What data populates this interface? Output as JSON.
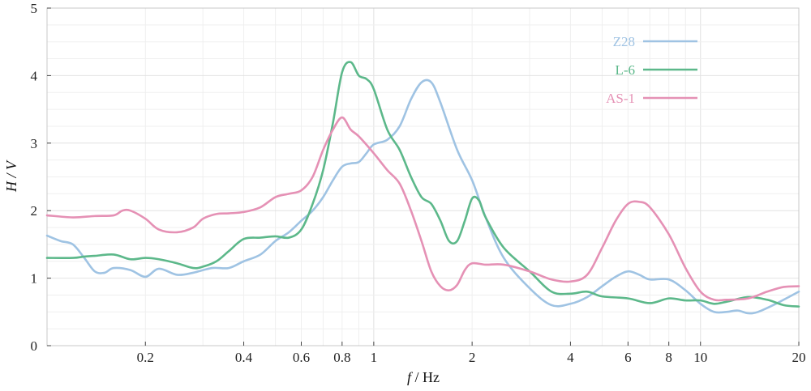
{
  "chart_data": {
    "type": "line",
    "title": "",
    "xlabel_italic": "f",
    "xlabel_rest": " / Hz",
    "ylabel": "H / V",
    "xscale": "log",
    "xlim": [
      0.1,
      20
    ],
    "ylim": [
      0,
      5
    ],
    "xticks": [
      0.2,
      0.4,
      0.6,
      0.8,
      1,
      2,
      4,
      6,
      8,
      10,
      20
    ],
    "xtick_labels": [
      "0.2",
      "0.4",
      "0.6",
      "0.8",
      "1",
      "2",
      "4",
      "6",
      "8",
      "10",
      "20"
    ],
    "yticks": [
      0,
      1,
      2,
      3,
      4,
      5
    ],
    "ytick_labels": [
      "0",
      "1",
      "2",
      "3",
      "4",
      "5"
    ],
    "grid": true,
    "legend_position": "top-right",
    "series": [
      {
        "name": "Z28",
        "color": "#9fc3e3",
        "points": [
          [
            0.1,
            1.63
          ],
          [
            0.11,
            1.55
          ],
          [
            0.12,
            1.5
          ],
          [
            0.13,
            1.3
          ],
          [
            0.14,
            1.1
          ],
          [
            0.15,
            1.08
          ],
          [
            0.16,
            1.15
          ],
          [
            0.18,
            1.12
          ],
          [
            0.2,
            1.02
          ],
          [
            0.22,
            1.14
          ],
          [
            0.25,
            1.05
          ],
          [
            0.28,
            1.08
          ],
          [
            0.32,
            1.15
          ],
          [
            0.36,
            1.15
          ],
          [
            0.4,
            1.25
          ],
          [
            0.45,
            1.35
          ],
          [
            0.5,
            1.55
          ],
          [
            0.55,
            1.68
          ],
          [
            0.6,
            1.85
          ],
          [
            0.65,
            2.0
          ],
          [
            0.7,
            2.2
          ],
          [
            0.75,
            2.45
          ],
          [
            0.8,
            2.65
          ],
          [
            0.85,
            2.7
          ],
          [
            0.9,
            2.72
          ],
          [
            0.95,
            2.85
          ],
          [
            1.0,
            2.98
          ],
          [
            1.1,
            3.05
          ],
          [
            1.2,
            3.25
          ],
          [
            1.3,
            3.65
          ],
          [
            1.4,
            3.9
          ],
          [
            1.5,
            3.9
          ],
          [
            1.6,
            3.6
          ],
          [
            1.8,
            2.9
          ],
          [
            2.0,
            2.45
          ],
          [
            2.2,
            1.9
          ],
          [
            2.5,
            1.3
          ],
          [
            3.0,
            0.85
          ],
          [
            3.5,
            0.6
          ],
          [
            4.0,
            0.62
          ],
          [
            4.5,
            0.72
          ],
          [
            5.0,
            0.88
          ],
          [
            5.5,
            1.02
          ],
          [
            6.0,
            1.1
          ],
          [
            6.5,
            1.05
          ],
          [
            7.0,
            0.98
          ],
          [
            8.0,
            0.98
          ],
          [
            9.0,
            0.82
          ],
          [
            10.0,
            0.62
          ],
          [
            11.0,
            0.5
          ],
          [
            12.0,
            0.5
          ],
          [
            13.0,
            0.52
          ],
          [
            14.0,
            0.48
          ],
          [
            15.0,
            0.5
          ],
          [
            17.0,
            0.62
          ],
          [
            20.0,
            0.8
          ]
        ]
      },
      {
        "name": "L-6",
        "color": "#5cb88a",
        "points": [
          [
            0.1,
            1.3
          ],
          [
            0.12,
            1.3
          ],
          [
            0.13,
            1.32
          ],
          [
            0.14,
            1.33
          ],
          [
            0.16,
            1.35
          ],
          [
            0.18,
            1.28
          ],
          [
            0.2,
            1.3
          ],
          [
            0.22,
            1.28
          ],
          [
            0.25,
            1.22
          ],
          [
            0.28,
            1.15
          ],
          [
            0.3,
            1.17
          ],
          [
            0.33,
            1.25
          ],
          [
            0.36,
            1.4
          ],
          [
            0.4,
            1.58
          ],
          [
            0.45,
            1.6
          ],
          [
            0.5,
            1.62
          ],
          [
            0.55,
            1.6
          ],
          [
            0.6,
            1.72
          ],
          [
            0.65,
            2.1
          ],
          [
            0.7,
            2.6
          ],
          [
            0.75,
            3.3
          ],
          [
            0.8,
            4.05
          ],
          [
            0.85,
            4.2
          ],
          [
            0.9,
            4.0
          ],
          [
            0.95,
            3.95
          ],
          [
            1.0,
            3.8
          ],
          [
            1.1,
            3.2
          ],
          [
            1.2,
            2.9
          ],
          [
            1.3,
            2.5
          ],
          [
            1.4,
            2.2
          ],
          [
            1.5,
            2.1
          ],
          [
            1.6,
            1.85
          ],
          [
            1.7,
            1.55
          ],
          [
            1.8,
            1.55
          ],
          [
            1.9,
            1.85
          ],
          [
            2.0,
            2.18
          ],
          [
            2.1,
            2.15
          ],
          [
            2.2,
            1.9
          ],
          [
            2.5,
            1.45
          ],
          [
            3.0,
            1.1
          ],
          [
            3.5,
            0.8
          ],
          [
            4.0,
            0.77
          ],
          [
            4.5,
            0.8
          ],
          [
            5.0,
            0.73
          ],
          [
            6.0,
            0.7
          ],
          [
            7.0,
            0.63
          ],
          [
            8.0,
            0.7
          ],
          [
            9.0,
            0.67
          ],
          [
            10.0,
            0.67
          ],
          [
            11.0,
            0.62
          ],
          [
            12.0,
            0.65
          ],
          [
            14.0,
            0.72
          ],
          [
            16.0,
            0.68
          ],
          [
            18.0,
            0.6
          ],
          [
            20.0,
            0.58
          ]
        ]
      },
      {
        "name": "AS-1",
        "color": "#e591b5",
        "points": [
          [
            0.1,
            1.93
          ],
          [
            0.12,
            1.9
          ],
          [
            0.14,
            1.92
          ],
          [
            0.16,
            1.93
          ],
          [
            0.17,
            2.0
          ],
          [
            0.18,
            2.0
          ],
          [
            0.2,
            1.88
          ],
          [
            0.22,
            1.72
          ],
          [
            0.25,
            1.68
          ],
          [
            0.28,
            1.75
          ],
          [
            0.3,
            1.88
          ],
          [
            0.33,
            1.95
          ],
          [
            0.36,
            1.96
          ],
          [
            0.4,
            1.98
          ],
          [
            0.45,
            2.05
          ],
          [
            0.5,
            2.2
          ],
          [
            0.55,
            2.25
          ],
          [
            0.6,
            2.3
          ],
          [
            0.65,
            2.5
          ],
          [
            0.7,
            2.9
          ],
          [
            0.75,
            3.2
          ],
          [
            0.8,
            3.38
          ],
          [
            0.85,
            3.2
          ],
          [
            0.9,
            3.1
          ],
          [
            1.0,
            2.85
          ],
          [
            1.1,
            2.6
          ],
          [
            1.2,
            2.4
          ],
          [
            1.3,
            2.0
          ],
          [
            1.4,
            1.55
          ],
          [
            1.5,
            1.1
          ],
          [
            1.6,
            0.88
          ],
          [
            1.7,
            0.82
          ],
          [
            1.8,
            0.9
          ],
          [
            1.9,
            1.12
          ],
          [
            2.0,
            1.22
          ],
          [
            2.2,
            1.2
          ],
          [
            2.5,
            1.2
          ],
          [
            3.0,
            1.1
          ],
          [
            3.5,
            0.98
          ],
          [
            4.0,
            0.95
          ],
          [
            4.5,
            1.05
          ],
          [
            5.0,
            1.45
          ],
          [
            5.5,
            1.85
          ],
          [
            6.0,
            2.1
          ],
          [
            6.5,
            2.13
          ],
          [
            7.0,
            2.05
          ],
          [
            8.0,
            1.65
          ],
          [
            9.0,
            1.15
          ],
          [
            10.0,
            0.8
          ],
          [
            11.0,
            0.68
          ],
          [
            12.0,
            0.68
          ],
          [
            14.0,
            0.7
          ],
          [
            16.0,
            0.8
          ],
          [
            18.0,
            0.87
          ],
          [
            20.0,
            0.88
          ]
        ]
      }
    ]
  }
}
